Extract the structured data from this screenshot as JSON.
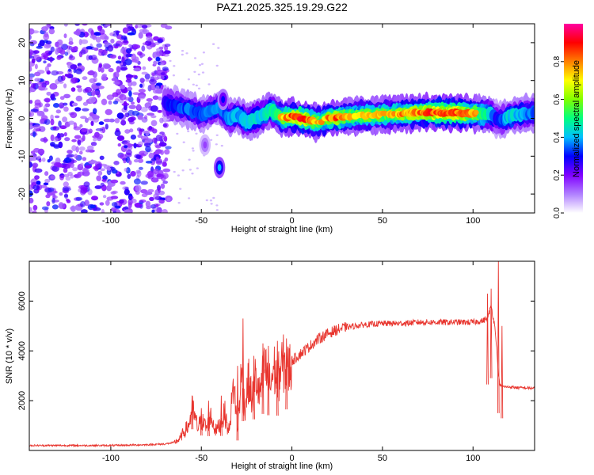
{
  "figure_title": "PAZ1.2025.325.19.29.G22",
  "chart_data": [
    {
      "type": "heatmap",
      "title": "PAZ1.2025.325.19.29.G22",
      "xlabel": "Height of straight line (km)",
      "ylabel": "Frequency (Hz)",
      "xlim": [
        -145,
        134
      ],
      "ylim": [
        -25,
        25
      ],
      "xticks": [
        -100,
        -50,
        0,
        50,
        100
      ],
      "yticks": [
        -20,
        -10,
        0,
        10,
        20
      ],
      "colorbar": {
        "label": "Normalized spectral amplitude",
        "range": [
          0,
          1
        ],
        "ticks": [
          "0.0",
          "0.2",
          "0.4",
          "0.6",
          "0.8"
        ],
        "tick_values": [
          0.0,
          0.2,
          0.4,
          0.6,
          0.8
        ],
        "colors": [
          "#ffffff",
          "#b080ff",
          "#8000ff",
          "#0000ff",
          "#00c0ff",
          "#00ff80",
          "#80ff00",
          "#ffff00",
          "#ff8000",
          "#ff0000",
          "#ff00a0"
        ]
      },
      "noise_region_x": [
        -145,
        -68
      ],
      "signal_track": {
        "x": [
          -70,
          -62,
          -55,
          -50,
          -45,
          -40,
          -35,
          -30,
          -25,
          -20,
          -15,
          -12,
          -8,
          -5,
          0,
          5,
          10,
          15,
          20,
          25,
          30,
          40,
          50,
          60,
          70,
          80,
          90,
          100,
          105,
          110,
          113,
          116,
          120,
          125,
          134
        ],
        "y": [
          4,
          3,
          2,
          1,
          2,
          3,
          0,
          1,
          -1,
          0,
          1,
          2.5,
          1,
          0,
          0.5,
          0,
          -0.5,
          -1,
          0,
          0.2,
          0.5,
          0.8,
          1,
          1.2,
          1.5,
          1.5,
          1.5,
          1.3,
          1.2,
          1,
          0,
          -0.5,
          0.5,
          1,
          1.5
        ],
        "amplitude": [
          0.4,
          0.45,
          0.5,
          0.45,
          0.5,
          0.5,
          0.5,
          0.55,
          0.6,
          0.6,
          0.6,
          0.65,
          0.7,
          0.75,
          0.9,
          0.9,
          0.85,
          0.75,
          0.8,
          0.9,
          0.75,
          0.75,
          0.75,
          0.8,
          0.85,
          0.9,
          0.9,
          0.8,
          0.7,
          0.6,
          0.4,
          0.45,
          0.6,
          0.55,
          0.5
        ]
      },
      "features": [
        {
          "x": -40,
          "y": -13,
          "amplitude": 0.4
        },
        {
          "x": -38,
          "y": 5,
          "amplitude": 0.3
        },
        {
          "x": -48,
          "y": -7,
          "amplitude": 0.15
        }
      ]
    },
    {
      "type": "line",
      "xlabel": "Height of straight line (km)",
      "ylabel": "SNR (10 * v/v)",
      "xlim": [
        -145,
        134
      ],
      "ylim": [
        0,
        7600
      ],
      "xticks": [
        -100,
        -50,
        0,
        50,
        100
      ],
      "yticks": [
        2000,
        4000,
        6000
      ],
      "color": "#e8352e",
      "series": [
        {
          "name": "SNR",
          "x": [
            -145,
            -120,
            -100,
            -80,
            -70,
            -65,
            -62,
            -60,
            -57,
            -55,
            -52,
            -50,
            -47,
            -45,
            -42,
            -40,
            -37,
            -35,
            -32,
            -30,
            -28,
            -26,
            -24,
            -22,
            -20,
            -18,
            -15,
            -12,
            -10,
            -8,
            -5,
            -2,
            0,
            5,
            10,
            15,
            20,
            25,
            30,
            35,
            40,
            50,
            60,
            70,
            80,
            90,
            100,
            105,
            108,
            110,
            112,
            113,
            114,
            115,
            118,
            120,
            125,
            134
          ],
          "y": [
            200,
            200,
            200,
            230,
            260,
            320,
            450,
            700,
            1000,
            1700,
            900,
            1200,
            900,
            1400,
            800,
            1000,
            1500,
            700,
            2700,
            800,
            3000,
            1700,
            2800,
            2000,
            3000,
            2200,
            3300,
            2600,
            3300,
            2800,
            3500,
            3200,
            3600,
            3900,
            4200,
            4500,
            4700,
            4850,
            4950,
            5000,
            5050,
            5100,
            5100,
            5150,
            5150,
            5150,
            5150,
            5200,
            5300,
            5800,
            5000,
            4200,
            3000,
            2600,
            2550,
            2550,
            2520,
            2500
          ],
          "spikes": [
            {
              "x": -55,
              "y": 2100
            },
            {
              "x": -50,
              "y": 1700
            },
            {
              "x": -46,
              "y": 2000
            },
            {
              "x": -39,
              "y": 2200
            },
            {
              "x": -30,
              "y": 3400
            },
            {
              "x": -27,
              "y": 5300
            },
            {
              "x": -21,
              "y": 3800
            },
            {
              "x": -16,
              "y": 4300
            },
            {
              "x": -13,
              "y": 4200
            },
            {
              "x": -8,
              "y": 4400
            },
            {
              "x": -3,
              "y": 4500
            },
            {
              "x": 108,
              "y": 6300
            },
            {
              "x": 110,
              "y": 6500
            },
            {
              "x": 114,
              "y": 7600
            },
            {
              "x": 116,
              "y": 5000
            }
          ]
        }
      ]
    }
  ]
}
